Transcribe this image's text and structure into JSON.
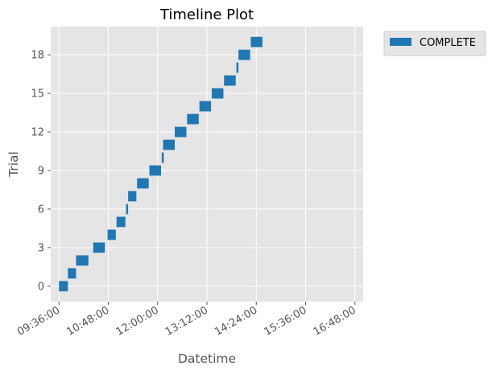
{
  "chart_data": {
    "type": "timeline",
    "title": "Timeline Plot",
    "xlabel": "Datetime",
    "ylabel": "Trial",
    "x_ticks": [
      "09:36:00",
      "10:48:00",
      "12:00:00",
      "13:12:00",
      "14:24:00",
      "15:36:00",
      "16:48:00"
    ],
    "y_ticks": [
      0,
      3,
      6,
      9,
      12,
      15,
      18
    ],
    "ylim": [
      -1.2,
      20.2
    ],
    "xlim": [
      "09:24:00",
      "17:00:00"
    ],
    "grid": true,
    "legend": {
      "position": "outside-top-right",
      "entries": [
        {
          "name": "COMPLETE",
          "color": "#1f77b4"
        }
      ]
    },
    "series": [
      {
        "name": "COMPLETE",
        "color": "#1f77b4",
        "bars": [
          {
            "trial": 0,
            "start": "09:36:00",
            "end": "09:49:00"
          },
          {
            "trial": 1,
            "start": "09:49:00",
            "end": "10:01:00"
          },
          {
            "trial": 2,
            "start": "10:01:00",
            "end": "10:19:00"
          },
          {
            "trial": 3,
            "start": "10:26:00",
            "end": "10:43:00"
          },
          {
            "trial": 4,
            "start": "10:47:00",
            "end": "10:59:00"
          },
          {
            "trial": 5,
            "start": "11:00:00",
            "end": "11:13:00"
          },
          {
            "trial": 6,
            "start": "11:14:00",
            "end": "11:16:00"
          },
          {
            "trial": 7,
            "start": "11:17:00",
            "end": "11:29:00"
          },
          {
            "trial": 8,
            "start": "11:30:00",
            "end": "11:47:00"
          },
          {
            "trial": 9,
            "start": "11:48:00",
            "end": "12:05:00"
          },
          {
            "trial": 10,
            "start": "12:06:00",
            "end": "12:08:00"
          },
          {
            "trial": 11,
            "start": "12:08:00",
            "end": "12:25:00"
          },
          {
            "trial": 12,
            "start": "12:25:00",
            "end": "12:42:00"
          },
          {
            "trial": 13,
            "start": "12:43:00",
            "end": "13:00:00"
          },
          {
            "trial": 14,
            "start": "13:01:00",
            "end": "13:18:00"
          },
          {
            "trial": 15,
            "start": "13:19:00",
            "end": "13:36:00"
          },
          {
            "trial": 16,
            "start": "13:37:00",
            "end": "13:54:00"
          },
          {
            "trial": 17,
            "start": "13:55:00",
            "end": "13:57:00"
          },
          {
            "trial": 18,
            "start": "13:58:00",
            "end": "14:15:00"
          },
          {
            "trial": 19,
            "start": "14:16:00",
            "end": "14:33:00"
          }
        ]
      }
    ]
  }
}
